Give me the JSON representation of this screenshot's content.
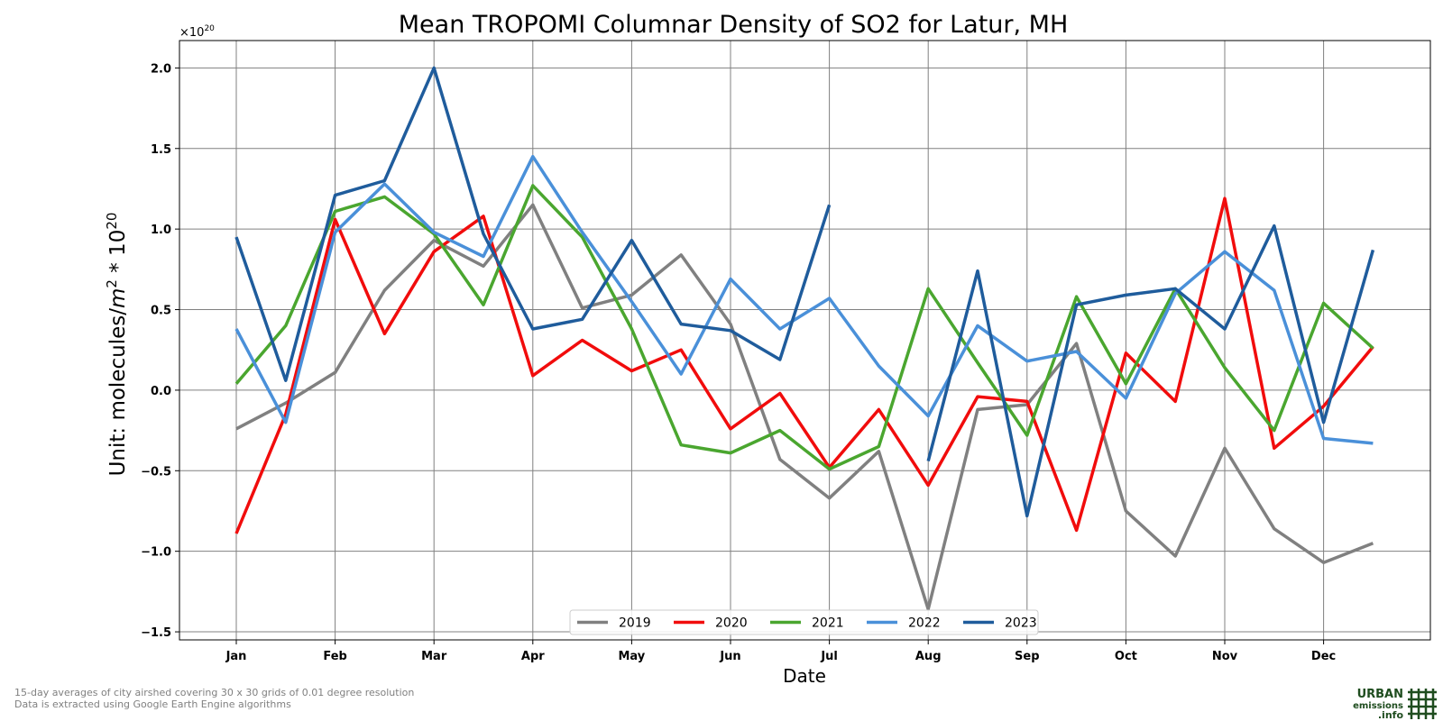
{
  "chart_data": {
    "type": "line",
    "title": "Mean TROPOMI Columnar Density of SO2 for Latur, MH",
    "xlabel": "Date",
    "ylabel_prefix": "Unit: molecules/",
    "ylabel_m": "m",
    "ylabel_m_exp": "2",
    "ylabel_mid": " * 10",
    "ylabel_exp": "20",
    "offset_base": "×10",
    "offset_exp": "20",
    "ylim": [
      -1.55,
      2.17
    ],
    "yticks": [
      -1.5,
      -1.0,
      -0.5,
      0.0,
      0.5,
      1.0,
      1.5,
      2.0
    ],
    "ytick_labels": [
      "−1.5",
      "−1.0",
      "−0.5",
      "0.0",
      "0.5",
      "1.0",
      "1.5",
      "2.0"
    ],
    "x_months": [
      "Jan",
      "Feb",
      "Mar",
      "Apr",
      "May",
      "Jun",
      "Jul",
      "Aug",
      "Sep",
      "Oct",
      "Nov",
      "Dec"
    ],
    "x_points": [
      "Jan",
      "Jan 15",
      "Feb",
      "Feb 15",
      "Mar",
      "Mar 15",
      "Apr",
      "Apr 15",
      "May",
      "May 15",
      "Jun",
      "Jun 15",
      "Jul",
      "Jul 15",
      "Aug",
      "Aug 15",
      "Sep",
      "Sep 15",
      "Oct",
      "Oct 15",
      "Nov",
      "Nov 15",
      "Dec",
      "Dec 15"
    ],
    "grid": true,
    "legend_position": "lower-center",
    "series": [
      {
        "name": "2019",
        "color": "#808080",
        "values": [
          -0.24,
          -0.08,
          0.11,
          0.62,
          0.93,
          0.77,
          1.15,
          0.51,
          0.59,
          0.84,
          0.41,
          -0.43,
          -0.67,
          -0.38,
          -1.36,
          -0.12,
          -0.09,
          0.29,
          -0.75,
          -1.03,
          -0.36,
          -0.86,
          -1.07,
          -0.95
        ]
      },
      {
        "name": "2020",
        "color": "#f10c0c",
        "values": [
          -0.89,
          -0.15,
          1.06,
          0.35,
          0.86,
          1.08,
          0.09,
          0.31,
          0.12,
          0.25,
          -0.24,
          -0.02,
          -0.48,
          -0.12,
          -0.59,
          -0.04,
          -0.07,
          -0.87,
          0.23,
          -0.07,
          1.19,
          -0.36,
          -0.1,
          0.27
        ]
      },
      {
        "name": "2021",
        "color": "#4aa62f",
        "values": [
          0.04,
          0.4,
          1.11,
          1.2,
          0.97,
          0.53,
          1.27,
          0.95,
          0.38,
          -0.34,
          -0.39,
          -0.25,
          -0.49,
          -0.35,
          0.63,
          0.17,
          -0.28,
          0.58,
          0.04,
          0.63,
          0.14,
          -0.25,
          0.54,
          0.26
        ]
      },
      {
        "name": "2022",
        "color": "#4a90d9",
        "values": [
          0.38,
          -0.2,
          0.98,
          1.28,
          0.98,
          0.83,
          1.45,
          0.98,
          0.55,
          0.1,
          0.69,
          0.38,
          0.57,
          0.15,
          -0.16,
          0.4,
          0.18,
          0.24,
          -0.05,
          0.6,
          0.86,
          0.62,
          -0.3,
          -0.33
        ]
      },
      {
        "name": "2023",
        "color": "#1f5c9c",
        "values": [
          0.95,
          0.06,
          1.21,
          1.3,
          2.0,
          0.97,
          0.38,
          0.44,
          0.93,
          0.41,
          0.37,
          0.19,
          1.15,
          null,
          -0.44,
          0.74,
          -0.78,
          0.53,
          0.59,
          0.63,
          0.38,
          1.02,
          -0.2,
          0.87
        ]
      }
    ]
  },
  "footnotes": {
    "line1": "15-day averages of city airshed covering 30 x 30 grids of 0.01 degree resolution",
    "line2": "Data is extracted using Google Earth Engine algorithms"
  },
  "logo": {
    "line1": "URBAN",
    "line2": "emissions",
    "line3": ".info",
    "color": "#1f4d1f"
  }
}
